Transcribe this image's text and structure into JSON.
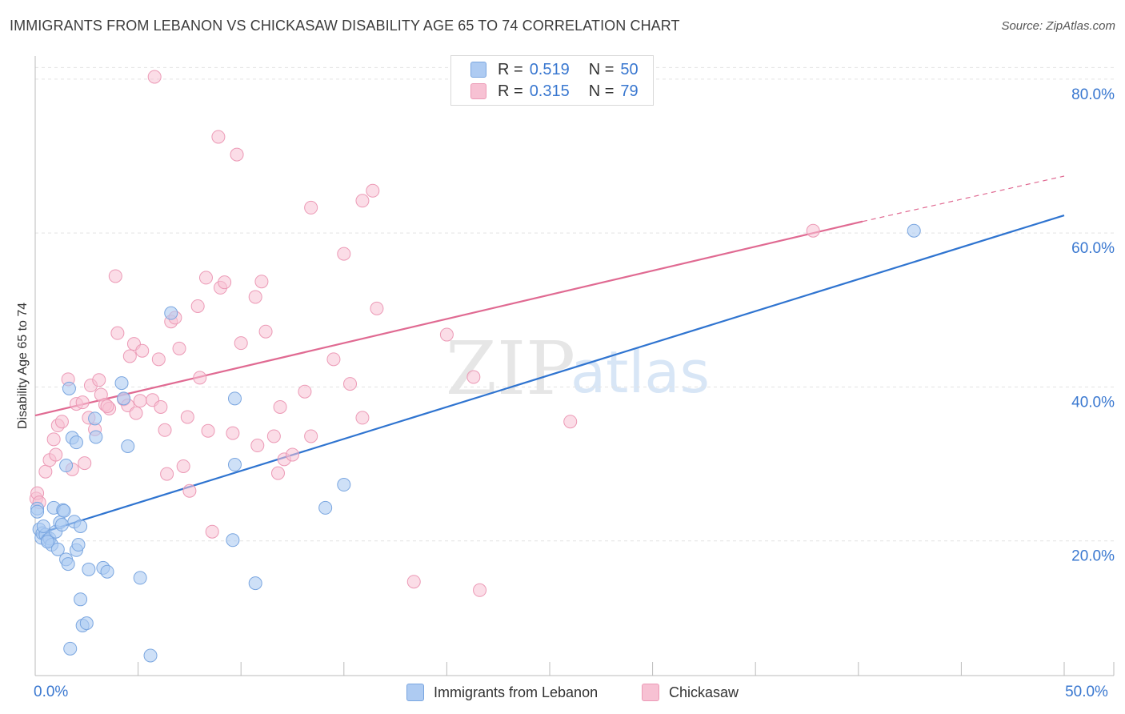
{
  "title": "IMMIGRANTS FROM LEBANON VS CHICKASAW DISABILITY AGE 65 TO 74 CORRELATION CHART",
  "source": "Source: ZipAtlas.com",
  "watermark": {
    "zip": "ZIP",
    "atlas": "atlas"
  },
  "legend": {
    "rows": [
      {
        "r_label": "R =",
        "r_value": "0.519",
        "n_label": "N =",
        "n_value": "50"
      },
      {
        "r_label": "R =",
        "r_value": "0.315",
        "n_label": "N =",
        "n_value": "79"
      }
    ]
  },
  "bottom_legend": {
    "series1": "Immigrants from Lebanon",
    "series2": "Chickasaw"
  },
  "colors": {
    "blue_fill": "#aecbf2",
    "blue_stroke": "#7aa6e0",
    "blue_line": "#2f74d0",
    "pink_fill": "#f7c1d3",
    "pink_stroke": "#ec9ab6",
    "pink_line": "#e06a92",
    "tick_label": "#3a78d0",
    "grid": "#e3e3e3"
  },
  "chart_data": {
    "type": "scatter",
    "title": "IMMIGRANTS FROM LEBANON VS CHICKASAW DISABILITY AGE 65 TO 74 CORRELATION CHART",
    "xlabel": "",
    "ylabel": "Disability Age 65 to 74",
    "xlim": [
      0,
      50
    ],
    "ylim": [
      2.5,
      83
    ],
    "x_tick_labels": [
      "0.0%",
      "50.0%"
    ],
    "x_ticks": [
      0,
      50
    ],
    "y_ticks": [
      20,
      40,
      60,
      80
    ],
    "y_tick_labels": [
      "20.0%",
      "40.0%",
      "60.0%",
      "80.0%"
    ],
    "series": [
      {
        "name": "Immigrants from Lebanon",
        "R": 0.519,
        "N": 50,
        "trend": {
          "x": [
            0,
            50
          ],
          "y": [
            20.8,
            62.3
          ]
        },
        "points": [
          [
            0.1,
            24.2
          ],
          [
            0.2,
            21.5
          ],
          [
            0.3,
            20.4
          ],
          [
            0.35,
            21.0
          ],
          [
            0.5,
            20.8
          ],
          [
            0.6,
            20.1
          ],
          [
            0.7,
            20.3
          ],
          [
            0.8,
            19.5
          ],
          [
            0.9,
            24.3
          ],
          [
            1.0,
            21.2
          ],
          [
            1.1,
            18.9
          ],
          [
            1.2,
            22.4
          ],
          [
            1.3,
            22.1
          ],
          [
            1.35,
            24.0
          ],
          [
            1.4,
            23.9
          ],
          [
            1.5,
            29.8
          ],
          [
            1.5,
            17.6
          ],
          [
            1.6,
            17.0
          ],
          [
            1.65,
            39.8
          ],
          [
            1.7,
            6.0
          ],
          [
            1.8,
            33.4
          ],
          [
            1.9,
            22.5
          ],
          [
            2.0,
            18.8
          ],
          [
            2.1,
            19.5
          ],
          [
            2.0,
            32.8
          ],
          [
            2.2,
            21.9
          ],
          [
            2.2,
            12.4
          ],
          [
            2.3,
            9.0
          ],
          [
            2.5,
            9.3
          ],
          [
            2.6,
            16.3
          ],
          [
            2.9,
            35.9
          ],
          [
            2.95,
            33.5
          ],
          [
            3.3,
            16.5
          ],
          [
            3.5,
            16.0
          ],
          [
            4.2,
            40.5
          ],
          [
            4.3,
            38.5
          ],
          [
            4.5,
            32.3
          ],
          [
            5.1,
            15.2
          ],
          [
            5.6,
            5.1
          ],
          [
            6.6,
            49.6
          ],
          [
            9.7,
            38.5
          ],
          [
            9.7,
            29.9
          ],
          [
            9.6,
            20.1
          ],
          [
            10.7,
            14.5
          ],
          [
            14.1,
            24.3
          ],
          [
            15.0,
            27.3
          ],
          [
            42.7,
            60.3
          ],
          [
            0.1,
            23.8
          ],
          [
            0.4,
            21.9
          ],
          [
            0.6,
            19.9
          ]
        ]
      },
      {
        "name": "Chickasaw",
        "R": 0.315,
        "N": 79,
        "trend": {
          "x": [
            0,
            40.2
          ],
          "y": [
            36.3,
            61.5
          ]
        },
        "trend_extension": {
          "x": [
            40.2,
            50
          ],
          "y": [
            61.5,
            67.4
          ]
        },
        "points": [
          [
            0.05,
            25.5
          ],
          [
            0.1,
            26.2
          ],
          [
            0.2,
            25.0
          ],
          [
            0.5,
            29.0
          ],
          [
            0.7,
            30.5
          ],
          [
            0.9,
            33.2
          ],
          [
            1.0,
            31.2
          ],
          [
            1.1,
            35.0
          ],
          [
            1.3,
            35.5
          ],
          [
            1.6,
            41.0
          ],
          [
            1.8,
            29.3
          ],
          [
            2.0,
            37.8
          ],
          [
            2.3,
            38.0
          ],
          [
            2.4,
            30.1
          ],
          [
            2.6,
            36.0
          ],
          [
            2.7,
            40.2
          ],
          [
            2.9,
            34.5
          ],
          [
            3.1,
            40.9
          ],
          [
            3.2,
            39.0
          ],
          [
            3.4,
            37.7
          ],
          [
            3.6,
            37.2
          ],
          [
            3.9,
            54.4
          ],
          [
            4.0,
            47.0
          ],
          [
            4.3,
            38.4
          ],
          [
            4.5,
            37.6
          ],
          [
            4.6,
            44.0
          ],
          [
            4.8,
            45.6
          ],
          [
            4.9,
            36.6
          ],
          [
            5.1,
            38.2
          ],
          [
            5.2,
            44.7
          ],
          [
            5.7,
            38.3
          ],
          [
            5.8,
            80.3
          ],
          [
            6.0,
            43.6
          ],
          [
            6.1,
            37.4
          ],
          [
            6.3,
            34.4
          ],
          [
            6.4,
            28.7
          ],
          [
            6.6,
            48.5
          ],
          [
            6.8,
            49.0
          ],
          [
            7.0,
            45.0
          ],
          [
            7.2,
            29.7
          ],
          [
            7.4,
            36.1
          ],
          [
            7.5,
            26.5
          ],
          [
            7.9,
            50.5
          ],
          [
            8.0,
            41.2
          ],
          [
            8.3,
            54.2
          ],
          [
            8.4,
            34.3
          ],
          [
            8.6,
            21.2
          ],
          [
            8.9,
            72.5
          ],
          [
            9.0,
            52.9
          ],
          [
            9.2,
            53.6
          ],
          [
            9.6,
            34.0
          ],
          [
            9.8,
            70.2
          ],
          [
            10.0,
            45.7
          ],
          [
            10.7,
            51.7
          ],
          [
            10.8,
            32.4
          ],
          [
            11.0,
            53.7
          ],
          [
            11.2,
            47.2
          ],
          [
            11.6,
            33.6
          ],
          [
            11.8,
            28.8
          ],
          [
            11.9,
            37.4
          ],
          [
            12.1,
            30.6
          ],
          [
            12.5,
            31.2
          ],
          [
            13.1,
            39.4
          ],
          [
            13.4,
            33.6
          ],
          [
            13.4,
            63.3
          ],
          [
            14.5,
            43.6
          ],
          [
            15.0,
            57.3
          ],
          [
            15.3,
            40.4
          ],
          [
            15.9,
            64.2
          ],
          [
            15.9,
            36.0
          ],
          [
            16.4,
            65.5
          ],
          [
            16.6,
            50.2
          ],
          [
            18.4,
            14.7
          ],
          [
            20.0,
            46.8
          ],
          [
            21.3,
            41.3
          ],
          [
            21.6,
            13.6
          ],
          [
            26.0,
            35.5
          ],
          [
            37.8,
            60.3
          ],
          [
            3.5,
            37.5
          ]
        ]
      }
    ]
  }
}
